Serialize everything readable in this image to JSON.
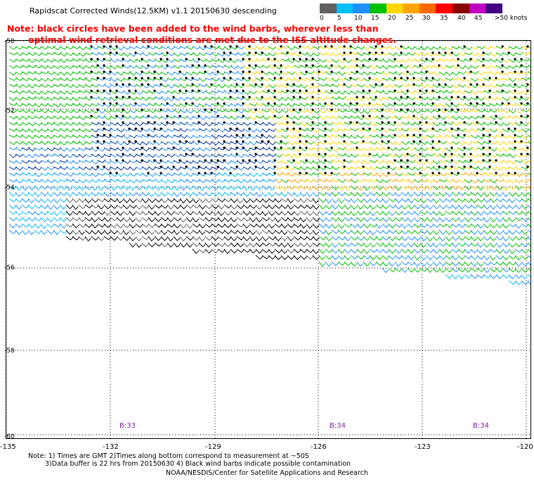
{
  "title": "Rapidscat Corrected Winds(12.5KM) v1.1 20150630 descending",
  "note": {
    "line1": "Note: black circles have been added to the wind barbs, wherever less than",
    "line2": "optimal wind retrieval conditions are met due to the ISS altitude changes."
  },
  "legend": {
    "labels": [
      "0",
      "5",
      "10",
      "15",
      "20",
      "25",
      "30",
      "35",
      "40",
      "45",
      ">50 knots"
    ],
    "colors": [
      "#606060",
      "#00bfff",
      "#1e90ff",
      "#00c000",
      "#ffd700",
      "#ffa500",
      "#ff6a00",
      "#ff0000",
      "#8b0000",
      "#c000c0",
      "#400080"
    ]
  },
  "map": {
    "lat_labels": [
      "-50",
      "-52",
      "-54",
      "-56",
      "-58",
      "-60"
    ],
    "lon_labels": [
      "-135",
      "-132",
      "-129",
      "-126",
      "-123",
      "-120"
    ],
    "rev_labels": [
      "B:33",
      "B:34",
      "B:34"
    ]
  },
  "footer": {
    "line1": "Note: 1) Times are GMT 2)Times along bottom correspond to measurement at ~50S",
    "line2": "3)Data buffer is 22 hrs from 20150630 4) Black wind barbs indicate possible contamination",
    "credit": "NOAA/NESDIS/Center for Satellite Applications and Research"
  }
}
